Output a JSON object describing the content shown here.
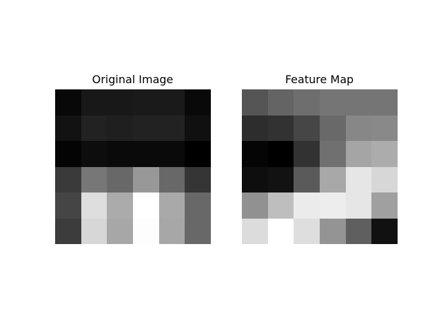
{
  "chart_data": [
    {
      "type": "heatmap",
      "title": "Original Image",
      "colormap": "gray",
      "axes_visible": false,
      "grid": false,
      "rows": 6,
      "cols": 6,
      "values": [
        [
          10,
          26,
          26,
          28,
          28,
          11
        ],
        [
          20,
          36,
          33,
          36,
          36,
          18
        ],
        [
          6,
          15,
          12,
          12,
          12,
          2
        ],
        [
          60,
          120,
          105,
          153,
          105,
          55
        ],
        [
          70,
          222,
          172,
          255,
          170,
          105
        ],
        [
          62,
          215,
          168,
          253,
          168,
          105
        ]
      ]
    },
    {
      "type": "heatmap",
      "title": "Feature Map",
      "colormap": "gray",
      "axes_visible": false,
      "grid": false,
      "rows": 6,
      "cols": 6,
      "values": [
        [
          85,
          100,
          110,
          117,
          117,
          117
        ],
        [
          45,
          50,
          70,
          105,
          135,
          137
        ],
        [
          5,
          0,
          50,
          112,
          165,
          172
        ],
        [
          14,
          18,
          90,
          168,
          230,
          215
        ],
        [
          145,
          190,
          235,
          237,
          230,
          160
        ],
        [
          220,
          255,
          222,
          148,
          95,
          17
        ]
      ]
    }
  ]
}
